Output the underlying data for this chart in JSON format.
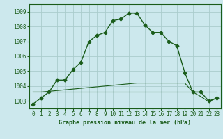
{
  "title": "Graphe pression niveau de la mer (hPa)",
  "background_color": "#cce8ed",
  "grid_color": "#aacccc",
  "line_color": "#1a5c1a",
  "spine_color": "#1a5c1a",
  "xlim": [
    -0.5,
    23.5
  ],
  "ylim": [
    1002.5,
    1009.5
  ],
  "yticks": [
    1003,
    1004,
    1005,
    1006,
    1007,
    1008,
    1009
  ],
  "xticks": [
    0,
    1,
    2,
    3,
    4,
    5,
    6,
    7,
    8,
    9,
    10,
    11,
    12,
    13,
    14,
    15,
    16,
    17,
    18,
    19,
    20,
    21,
    22,
    23
  ],
  "main_line": [
    1002.8,
    1003.2,
    1003.6,
    1004.4,
    1004.4,
    1005.1,
    1005.6,
    1007.0,
    1007.4,
    1007.6,
    1008.4,
    1008.5,
    1008.9,
    1008.9,
    1008.1,
    1007.6,
    1007.6,
    1007.0,
    1006.7,
    1004.9,
    1003.6,
    1003.6,
    1003.0,
    1003.2
  ],
  "flat_line1": [
    1003.6,
    1003.6,
    1003.65,
    1003.7,
    1003.75,
    1003.8,
    1003.85,
    1003.9,
    1003.95,
    1004.0,
    1004.05,
    1004.1,
    1004.15,
    1004.2,
    1004.2,
    1004.2,
    1004.2,
    1004.2,
    1004.2,
    1004.2,
    1003.6,
    1003.3,
    1002.95,
    1003.2
  ],
  "flat_line2": [
    1003.6,
    1003.6,
    1003.6,
    1003.6,
    1003.6,
    1003.6,
    1003.6,
    1003.6,
    1003.6,
    1003.6,
    1003.6,
    1003.6,
    1003.6,
    1003.6,
    1003.6,
    1003.6,
    1003.6,
    1003.6,
    1003.6,
    1003.6,
    1003.6,
    1003.6,
    1003.6,
    1003.6
  ],
  "xlabel_fontsize": 6.0,
  "tick_fontsize": 5.5
}
